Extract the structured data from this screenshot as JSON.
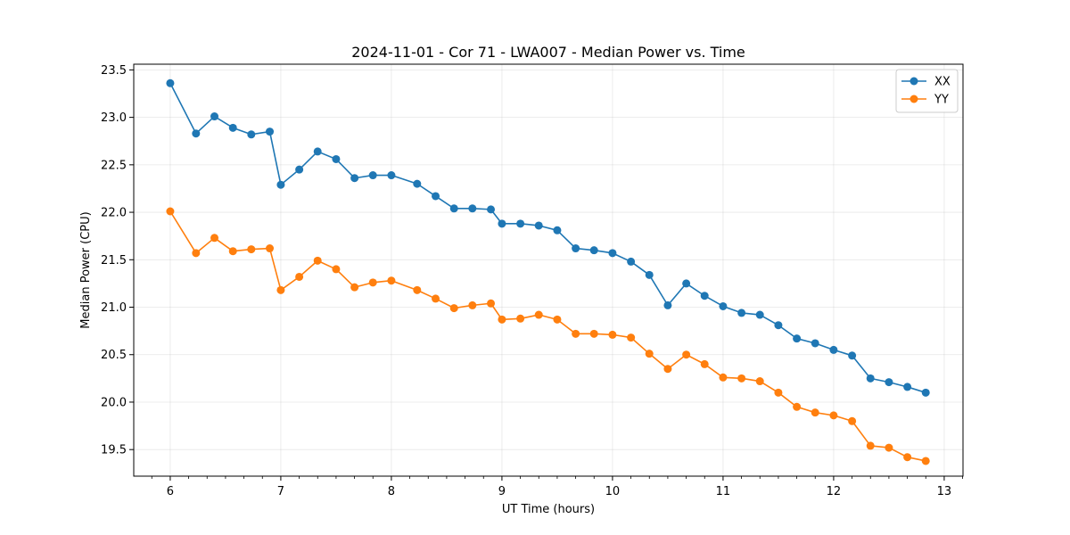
{
  "chart_data": {
    "type": "line",
    "title": "2024-11-01 - Cor 71 - LWA007 - Median Power vs. Time",
    "xlabel": "UT Time (hours)",
    "ylabel": "Median Power (CPU)",
    "xlim": [
      5.67,
      13.17
    ],
    "ylim": [
      19.22,
      23.56
    ],
    "xticks": [
      6,
      7,
      8,
      9,
      10,
      11,
      12,
      13
    ],
    "xtick_labels": [
      "6",
      "7",
      "8",
      "9",
      "10",
      "11",
      "12",
      "13"
    ],
    "yticks": [
      19.5,
      20.0,
      20.5,
      21.0,
      21.5,
      22.0,
      22.5,
      23.0,
      23.5
    ],
    "ytick_labels": [
      "19.5",
      "20.0",
      "20.5",
      "21.0",
      "21.5",
      "22.0",
      "22.5",
      "23.0",
      "23.5"
    ],
    "grid": true,
    "legend_position": "top-right",
    "x": [
      6.0,
      6.233,
      6.4,
      6.567,
      6.733,
      6.9,
      7.0,
      7.167,
      7.333,
      7.5,
      7.667,
      7.833,
      8.0,
      8.233,
      8.4,
      8.567,
      8.733,
      8.9,
      9.0,
      9.167,
      9.333,
      9.5,
      9.667,
      9.833,
      10.0,
      10.167,
      10.333,
      10.5,
      10.667,
      10.833,
      11.0,
      11.167,
      11.333,
      11.5,
      11.667,
      11.833,
      12.0,
      12.167,
      12.333,
      12.5,
      12.667,
      12.833
    ],
    "series": [
      {
        "name": "XX",
        "color": "#1f77b4",
        "values": [
          23.36,
          22.83,
          23.01,
          22.89,
          22.82,
          22.85,
          22.29,
          22.45,
          22.64,
          22.56,
          22.36,
          22.39,
          22.39,
          22.3,
          22.17,
          22.04,
          22.04,
          22.03,
          21.88,
          21.88,
          21.86,
          21.81,
          21.62,
          21.6,
          21.57,
          21.48,
          21.34,
          21.02,
          21.25,
          21.12,
          21.01,
          20.94,
          20.92,
          20.81,
          20.67,
          20.62,
          20.55,
          20.49,
          20.25,
          20.21,
          20.16,
          20.1
        ]
      },
      {
        "name": "YY",
        "color": "#ff7f0e",
        "values": [
          22.01,
          21.57,
          21.73,
          21.59,
          21.61,
          21.62,
          21.18,
          21.32,
          21.49,
          21.4,
          21.21,
          21.26,
          21.28,
          21.18,
          21.09,
          20.99,
          21.02,
          21.04,
          20.87,
          20.88,
          20.92,
          20.87,
          20.72,
          20.72,
          20.71,
          20.68,
          20.51,
          20.35,
          20.5,
          20.4,
          20.26,
          20.25,
          20.22,
          20.1,
          19.95,
          19.89,
          19.86,
          19.8,
          19.54,
          19.52,
          19.42,
          19.38
        ]
      }
    ]
  }
}
